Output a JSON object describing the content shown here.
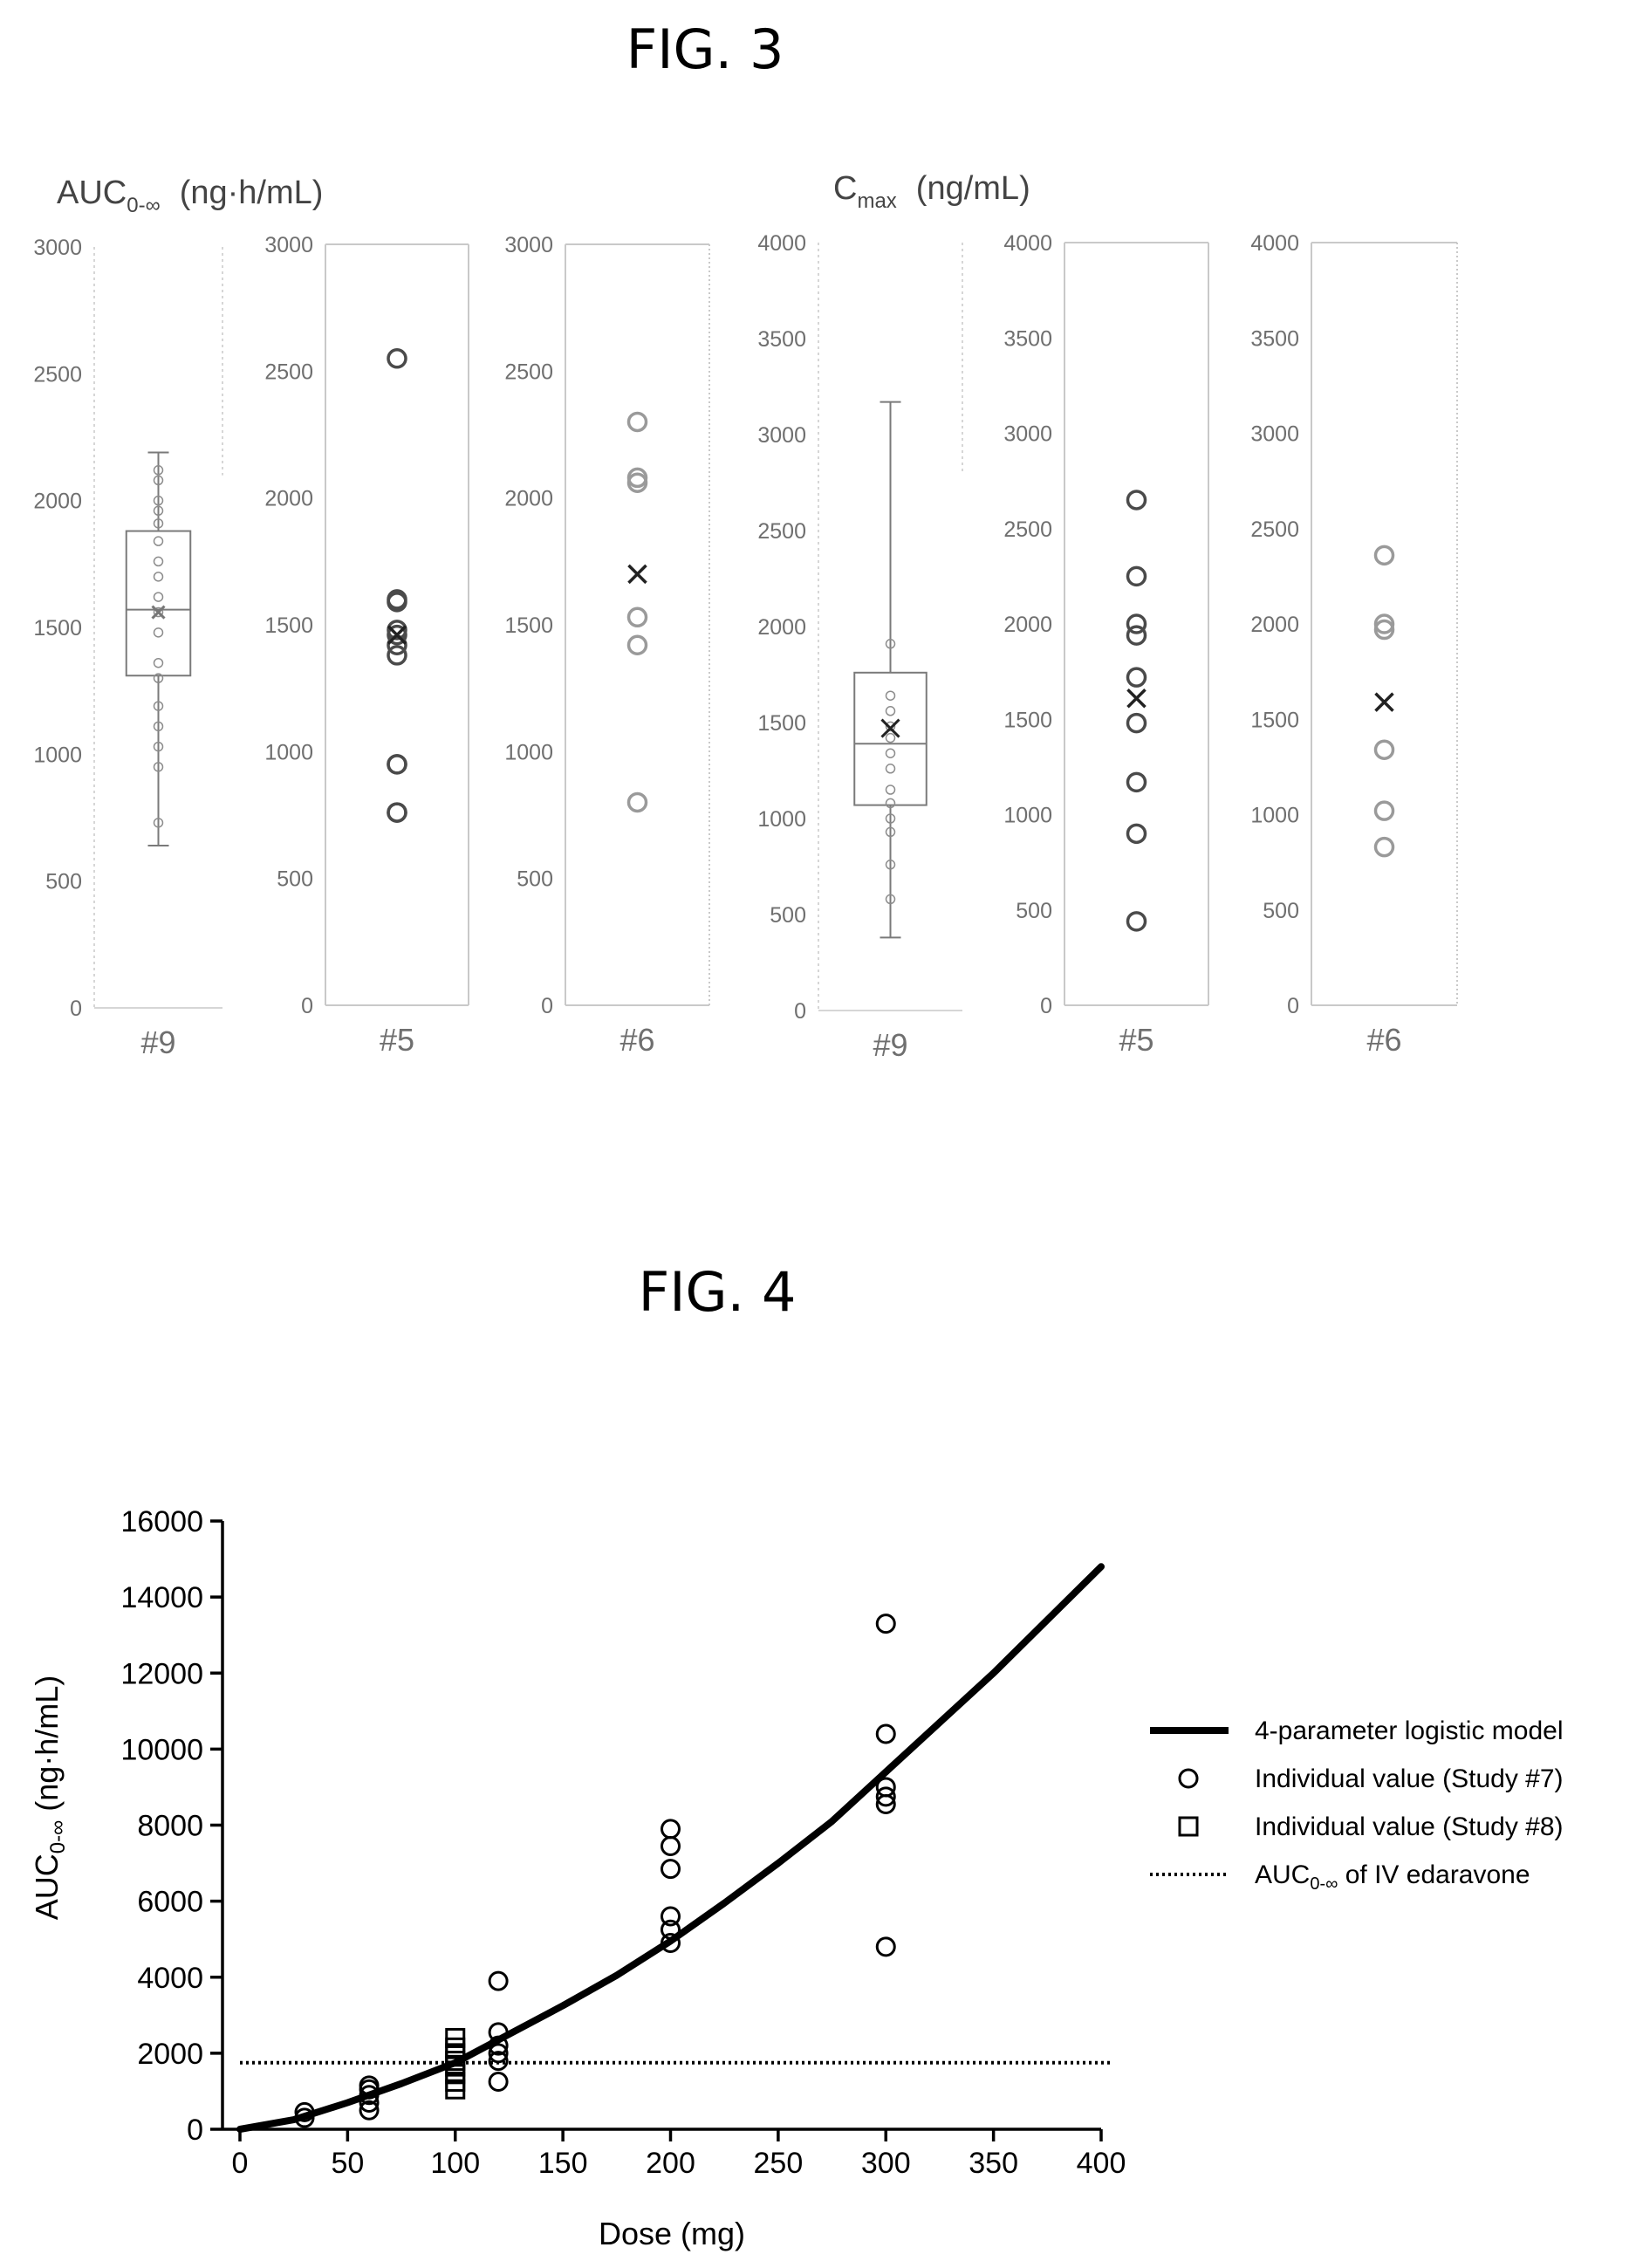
{
  "fig3": {
    "title": "FIG. 3",
    "auc_label_main": "AUC",
    "auc_label_sub": "0-∞",
    "auc_label_unit": "(ng·h/mL)",
    "cmax_label_main": "C",
    "cmax_label_sub": "max",
    "cmax_label_unit": "(ng/mL)"
  },
  "fig4": {
    "title": "FIG. 4"
  },
  "chart_data": [
    {
      "type": "box",
      "ylabel": "AUC0-∞ (ng·h/mL)",
      "ylim": [
        0,
        3000
      ],
      "yticks": [
        0,
        500,
        1000,
        1500,
        2000,
        2500,
        3000
      ],
      "panels": [
        {
          "category": "#9",
          "style": "box",
          "box": {
            "whisker_low": 640,
            "q1": 1310,
            "median": 1570,
            "q3": 1880,
            "whisker_high": 2190,
            "mean": 1560
          },
          "points": [
            730,
            950,
            1030,
            1110,
            1190,
            1300,
            1360,
            1480,
            1560,
            1620,
            1700,
            1760,
            1840,
            1910,
            1960,
            2000,
            2080,
            2120
          ]
        },
        {
          "category": "#5",
          "style": "dark",
          "mean": 1460,
          "points": [
            760,
            760,
            950,
            950,
            1380,
            1420,
            1460,
            1480,
            1590,
            1600,
            2550
          ]
        },
        {
          "category": "#6",
          "style": "light",
          "mean": 1700,
          "points": [
            800,
            1420,
            1530,
            2060,
            2080,
            2300
          ]
        }
      ]
    },
    {
      "type": "box",
      "ylabel": "Cmax (ng/mL)",
      "ylim": [
        0,
        4000
      ],
      "yticks": [
        0,
        500,
        1000,
        1500,
        2000,
        2500,
        3000,
        3500,
        4000
      ],
      "panels": [
        {
          "category": "#9",
          "style": "box",
          "box": {
            "whisker_low": 380,
            "q1": 1070,
            "median": 1390,
            "q3": 1760,
            "whisker_high": 3170,
            "mean": 1470
          },
          "points": [
            580,
            760,
            930,
            1000,
            1080,
            1150,
            1260,
            1340,
            1420,
            1480,
            1560,
            1640,
            1910
          ]
        },
        {
          "category": "#5",
          "style": "dark",
          "mean": 1610,
          "points": [
            440,
            900,
            1170,
            1480,
            1720,
            1940,
            2000,
            2250,
            2650
          ]
        },
        {
          "category": "#6",
          "style": "light",
          "mean": 1590,
          "points": [
            830,
            1020,
            1340,
            1970,
            2000,
            2360
          ]
        }
      ]
    },
    {
      "type": "scatter",
      "xlabel": "Dose (mg)",
      "ylabel_main": "AUC",
      "ylabel_sub": "0-∞",
      "ylabel_unit": "(ng·h/mL)",
      "xlim": [
        0,
        400
      ],
      "ylim": [
        0,
        16000
      ],
      "xticks": [
        0,
        50,
        100,
        150,
        200,
        250,
        300,
        350,
        400
      ],
      "yticks": [
        0,
        2000,
        4000,
        6000,
        8000,
        10000,
        12000,
        14000,
        16000
      ],
      "curve": {
        "name": "4-parameter logistic model",
        "x": [
          0,
          25,
          50,
          75,
          100,
          125,
          150,
          175,
          200,
          225,
          250,
          275,
          300,
          325,
          350,
          375,
          400
        ],
        "y": [
          0,
          250,
          700,
          1200,
          1750,
          2500,
          3250,
          4050,
          4950,
          5950,
          7000,
          8100,
          9400,
          10700,
          12000,
          13400,
          14800
        ]
      },
      "study7": {
        "name": "Individual value (Study #7)",
        "points": [
          [
            30,
            300
          ],
          [
            30,
            450
          ],
          [
            60,
            500
          ],
          [
            60,
            700
          ],
          [
            60,
            900
          ],
          [
            60,
            1050
          ],
          [
            60,
            1150
          ],
          [
            120,
            1250
          ],
          [
            120,
            1800
          ],
          [
            120,
            2000
          ],
          [
            120,
            2200
          ],
          [
            120,
            2550
          ],
          [
            120,
            3900
          ],
          [
            200,
            4900
          ],
          [
            200,
            5250
          ],
          [
            200,
            5600
          ],
          [
            200,
            6850
          ],
          [
            200,
            7450
          ],
          [
            200,
            7900
          ],
          [
            300,
            4800
          ],
          [
            300,
            8550
          ],
          [
            300,
            8750
          ],
          [
            300,
            9000
          ],
          [
            300,
            10400
          ],
          [
            300,
            13300
          ]
        ]
      },
      "study8": {
        "name": "Individual value (Study #8)",
        "points": [
          [
            100,
            1050
          ],
          [
            100,
            1250
          ],
          [
            100,
            1450
          ],
          [
            100,
            1650
          ],
          [
            100,
            1800
          ],
          [
            100,
            2000
          ],
          [
            100,
            2150
          ],
          [
            100,
            2400
          ]
        ]
      },
      "iv_reference": {
        "name": "AUC0-∞ of IV edaravone",
        "name_main": "AUC",
        "name_sub": "0-∞",
        "name_rest": " of IV edaravone",
        "y": 1750
      }
    }
  ]
}
